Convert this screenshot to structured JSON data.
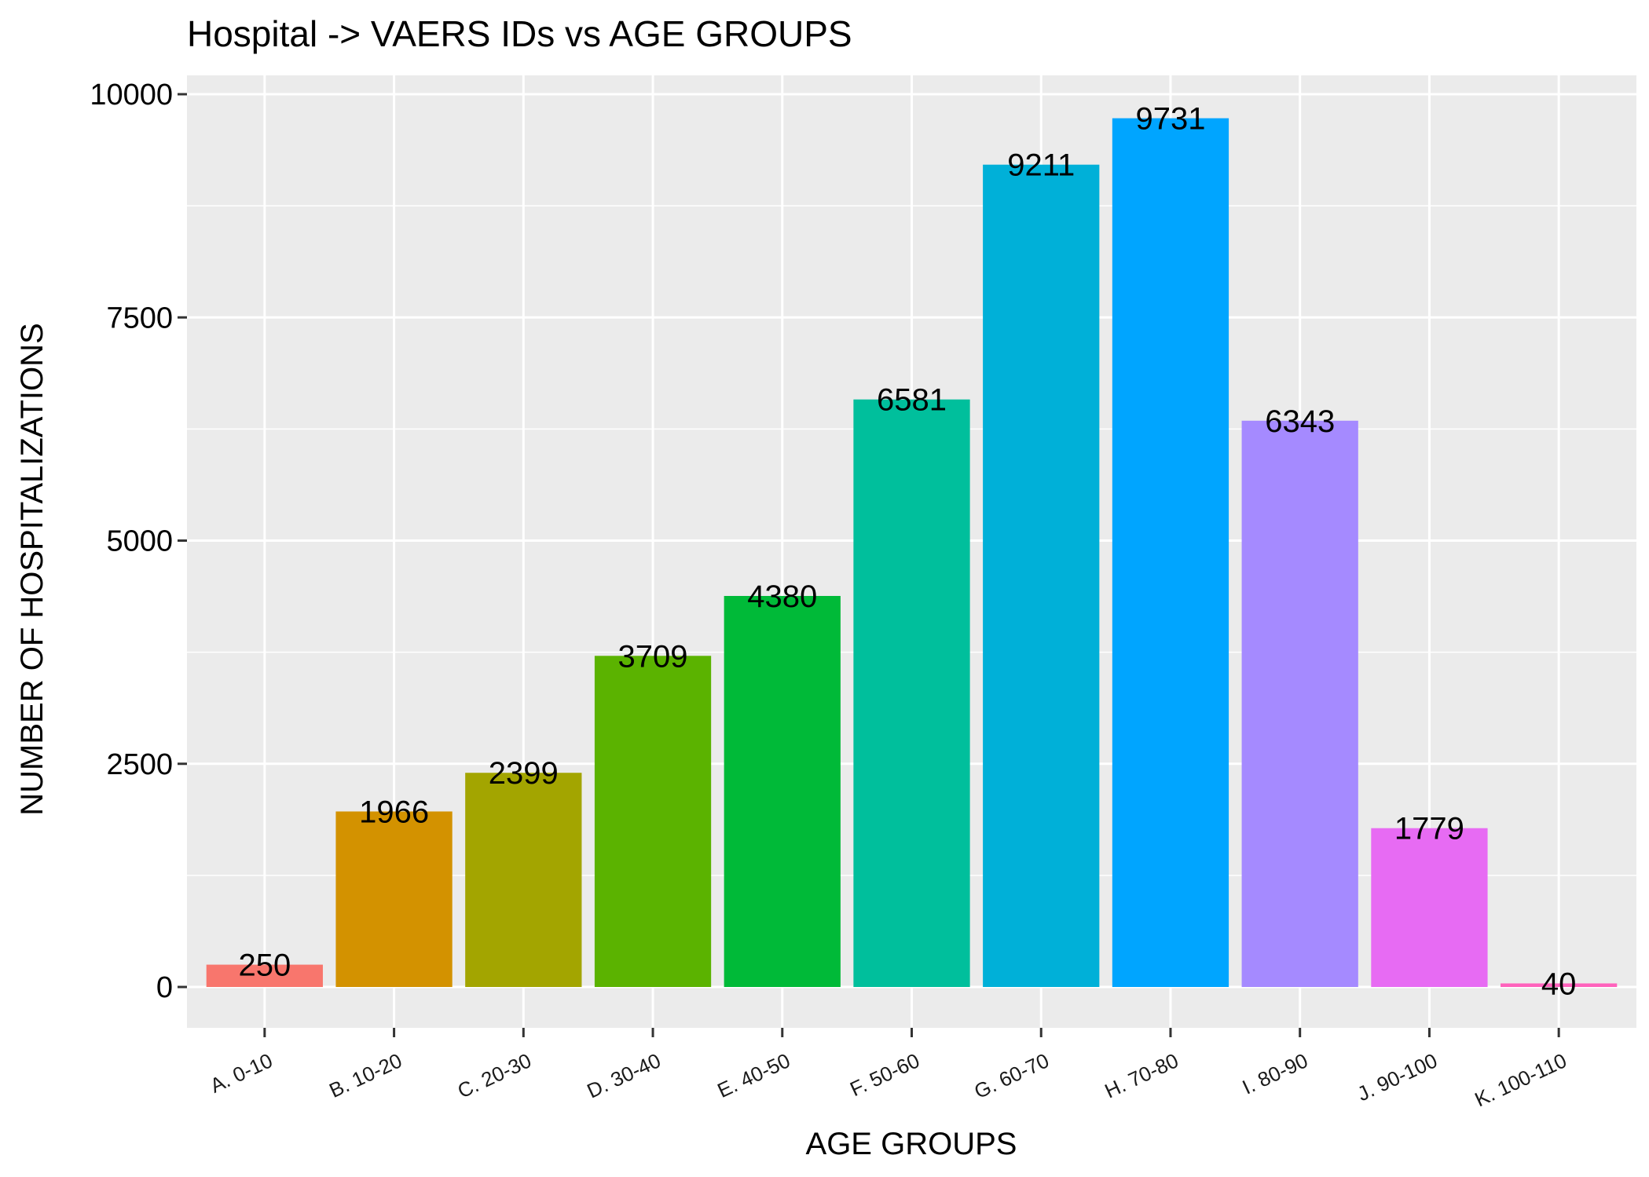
{
  "chart_data": {
    "type": "bar",
    "title": "Hospital -> VAERS IDs vs AGE GROUPS",
    "xlabel": "AGE GROUPS",
    "ylabel": "NUMBER OF HOSPITALIZATIONS",
    "categories": [
      "A. 0-10",
      "B. 10-20",
      "C. 20-30",
      "D. 30-40",
      "E. 40-50",
      "F. 50-60",
      "G. 60-70",
      "H. 70-80",
      "I. 80-90",
      "J. 90-100",
      "K. 100-110"
    ],
    "values": [
      250,
      1966,
      2399,
      3709,
      4380,
      6581,
      9211,
      9731,
      6343,
      1779,
      40
    ],
    "colors": [
      "#F8766D",
      "#D39200",
      "#A3A500",
      "#5BB300",
      "#00BA38",
      "#00BF9C",
      "#00B0D8",
      "#00A5FF",
      "#A58AFF",
      "#E76BF3",
      "#FF62BC"
    ],
    "yticks": [
      0,
      2500,
      5000,
      7500,
      10000
    ],
    "ylim": [
      -500,
      10200
    ],
    "grid": true,
    "legend": "none",
    "panel_background": "#EBEBEB"
  }
}
